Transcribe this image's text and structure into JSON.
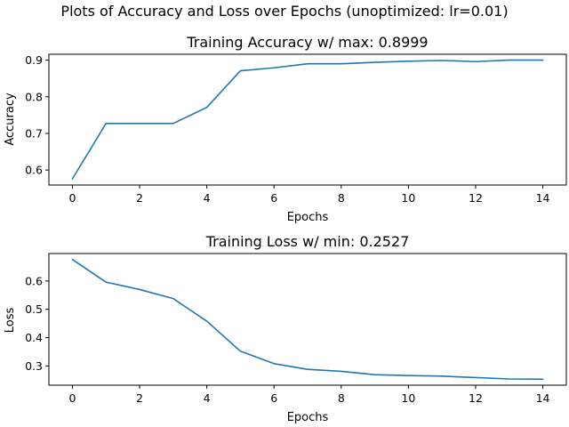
{
  "figure": {
    "suptitle": "Plots of Accuracy and Loss over Epochs (unoptimized: lr=0.01)"
  },
  "chart_data": [
    {
      "type": "line",
      "title": "Training Accuracy w/ max: 0.8999",
      "xlabel": "Epochs",
      "ylabel": "Accuracy",
      "xlim": [
        -0.7,
        14.7
      ],
      "ylim": [
        0.559,
        0.916
      ],
      "xticks": [
        0,
        2,
        4,
        6,
        8,
        10,
        12,
        14
      ],
      "yticks": [
        0.6,
        0.7,
        0.8,
        0.9
      ],
      "ytick_labels": [
        "0.6",
        "0.7",
        "0.8",
        "0.9"
      ],
      "grid": false,
      "color": "#1f77b4",
      "x": [
        0,
        1,
        2,
        3,
        4,
        5,
        6,
        7,
        8,
        9,
        10,
        11,
        12,
        13,
        14
      ],
      "y": [
        0.576,
        0.727,
        0.727,
        0.727,
        0.771,
        0.871,
        0.879,
        0.89,
        0.89,
        0.894,
        0.897,
        0.899,
        0.896,
        0.9,
        0.9
      ]
    },
    {
      "type": "line",
      "title": "Training Loss w/ min: 0.2527",
      "xlabel": "Epochs",
      "ylabel": "Loss",
      "xlim": [
        -0.7,
        14.7
      ],
      "ylim": [
        0.232,
        0.697
      ],
      "xticks": [
        0,
        2,
        4,
        6,
        8,
        10,
        12,
        14
      ],
      "yticks": [
        0.3,
        0.4,
        0.5,
        0.6
      ],
      "ytick_labels": [
        "0.3",
        "0.4",
        "0.5",
        "0.6"
      ],
      "grid": false,
      "color": "#1f77b4",
      "x": [
        0,
        1,
        2,
        3,
        4,
        5,
        6,
        7,
        8,
        9,
        10,
        11,
        12,
        13,
        14
      ],
      "y": [
        0.676,
        0.596,
        0.57,
        0.538,
        0.458,
        0.352,
        0.308,
        0.288,
        0.281,
        0.269,
        0.266,
        0.264,
        0.259,
        0.254,
        0.253
      ]
    }
  ]
}
